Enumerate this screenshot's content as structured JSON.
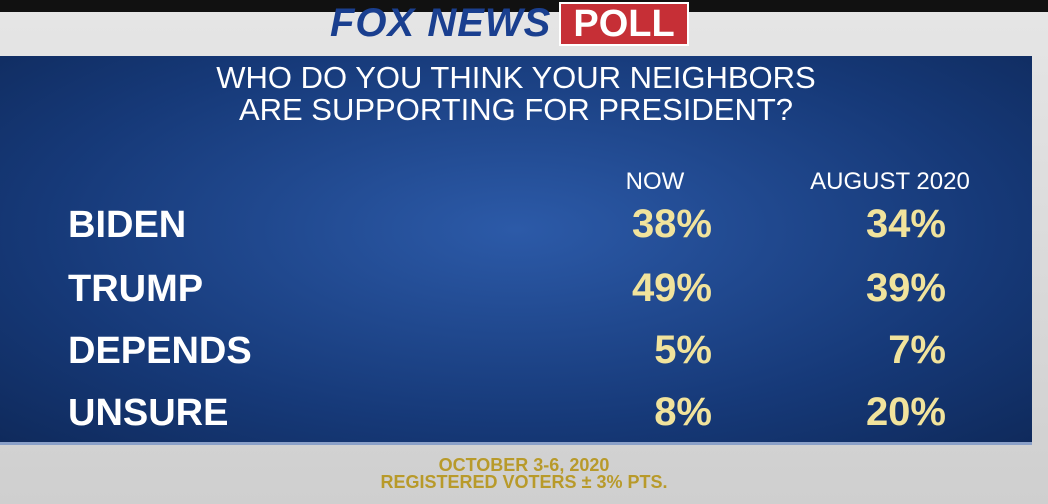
{
  "header": {
    "logo": "FOX NEWS",
    "badge": "POLL"
  },
  "question": {
    "lines": [
      "WHO DO YOU THINK YOUR NEIGHBORS",
      "ARE SUPPORTING FOR PRESIDENT?"
    ]
  },
  "table": {
    "columns": [
      "NOW",
      "AUGUST 2020"
    ],
    "rows": [
      [
        "BIDEN",
        "38%",
        "34%"
      ],
      [
        "TRUMP",
        "49%",
        "39%"
      ],
      [
        "DEPENDS",
        "5%",
        "7%"
      ],
      [
        "UNSURE",
        "8%",
        "20%"
      ]
    ]
  },
  "footer": {
    "lines": [
      "OCTOBER 3-6, 2020",
      "REGISTERED VOTERS ± 3% PTS."
    ]
  }
}
